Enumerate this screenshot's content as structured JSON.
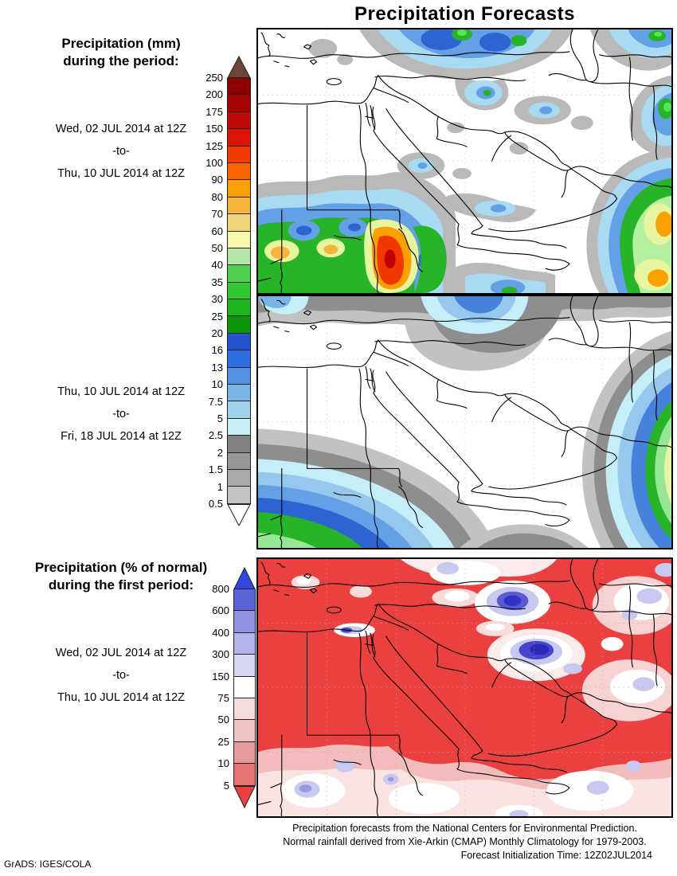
{
  "title": "Precipitation Forecasts",
  "sidebar": {
    "section1": {
      "heading1": "Precipitation (mm)",
      "heading2": "during the period:",
      "date_from": "Wed, 02 JUL 2014 at 12Z",
      "separator": "-to-",
      "date_to": "Thu, 10 JUL 2014 at 12Z"
    },
    "section2": {
      "date_from": "Thu, 10 JUL 2014 at 12Z",
      "separator": "-to-",
      "date_to": "Fri, 18 JUL 2014 at 12Z"
    },
    "section3": {
      "heading1": "Precipitation (% of normal)",
      "heading2": "during the first period:",
      "date_from": "Wed, 02 JUL 2014 at 12Z",
      "separator": "-to-",
      "date_to": "Thu, 10 JUL 2014 at 12Z"
    }
  },
  "colorbar_mm": {
    "unit": "mm",
    "ticks": [
      "250",
      "200",
      "175",
      "150",
      "125",
      "100",
      "90",
      "80",
      "70",
      "60",
      "50",
      "40",
      "35",
      "30",
      "25",
      "20",
      "16",
      "13",
      "10",
      "7.5",
      "5",
      "2.5",
      "2",
      "1.5",
      "1",
      "0.5"
    ],
    "triangle_top_color": "#6e4539",
    "triangle_bottom_color": "#ffffff",
    "segment_colors": [
      "#8c0000",
      "#a50404",
      "#c00a0a",
      "#dc1404",
      "#f03c00",
      "#fa6400",
      "#faa000",
      "#f5b43c",
      "#f0d278",
      "#f8f8aa",
      "#b4e6aa",
      "#50d250",
      "#32c832",
      "#1eb41e",
      "#0c960c",
      "#2353cd",
      "#2e6ee1",
      "#5291e1",
      "#78b4e6",
      "#a0d2eb",
      "#c8f0f5",
      "#828282",
      "#969696",
      "#aaaaaa",
      "#c3c3c3"
    ]
  },
  "colorbar_pct": {
    "unit": "% of normal",
    "ticks": [
      "800",
      "600",
      "400",
      "300",
      "150",
      "75",
      "50",
      "25",
      "10",
      "5"
    ],
    "triangle_top_color": "#3246e1",
    "triangle_bottom_color": "#eb4040",
    "segment_colors": [
      "#5a64d7",
      "#9191e1",
      "#b4b4ea",
      "#d7d7f4",
      "#ffffff",
      "#f5dcdc",
      "#f0c3c3",
      "#e69b9b",
      "#e67373"
    ]
  },
  "footer": {
    "line1": "Precipitation forecasts from the National Centers for Environmental Prediction.",
    "line2": "Normal rainfall derived from Xie-Arkin (CMAP) Monthly Climatology for 1979-2003.",
    "line3": "Forecast Initialization Time: 12Z02JUL2014"
  },
  "credit": "GrADS: IGES/COLA"
}
